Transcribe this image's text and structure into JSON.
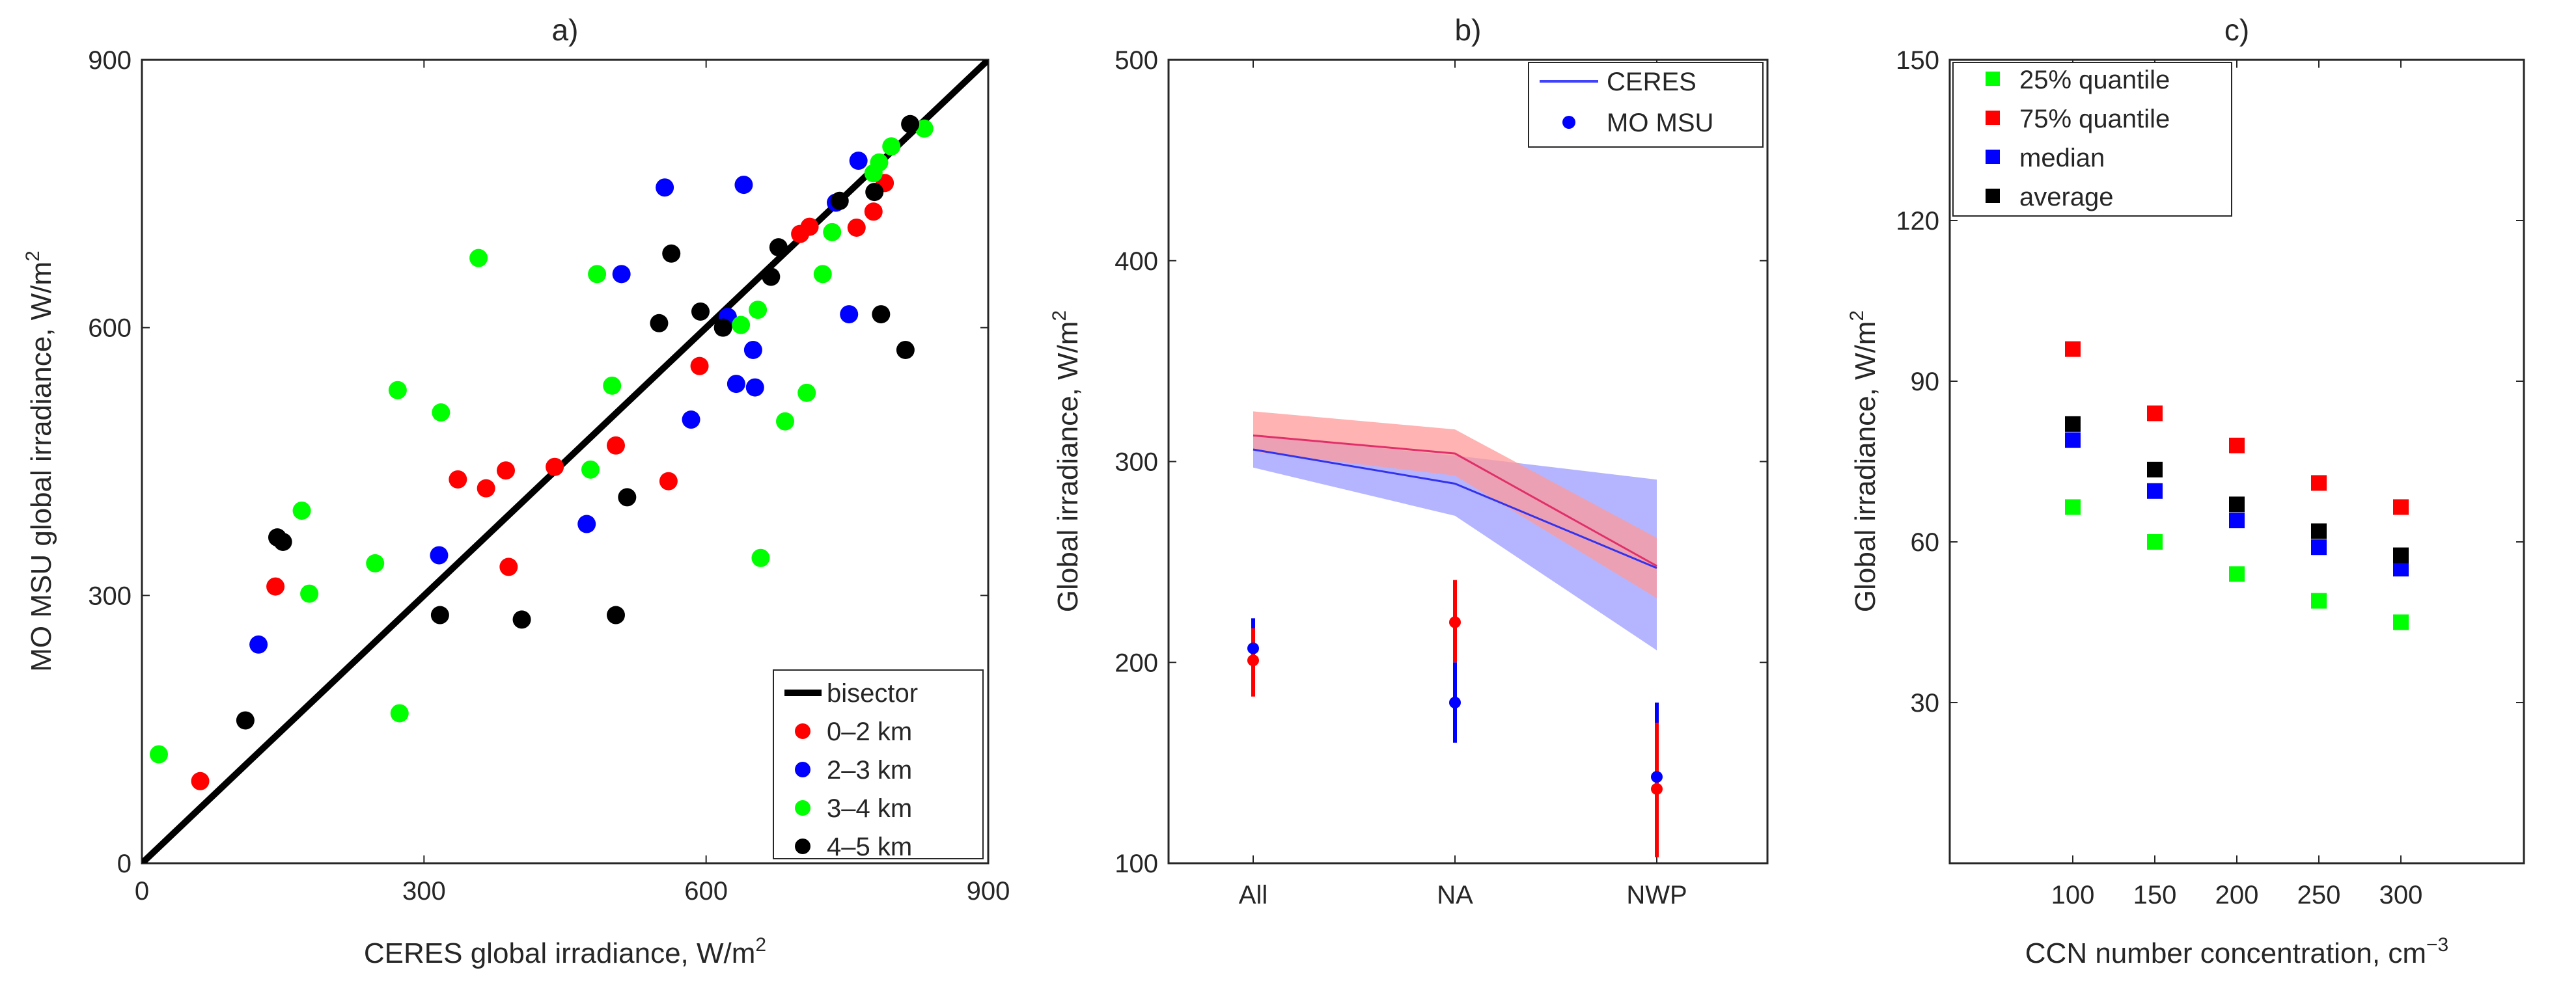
{
  "chart_data": [
    {
      "type": "scatter",
      "panel": "a)",
      "title": "a)",
      "xlabel": "CERES global irradiance, W/m",
      "xlabel_sup": "2",
      "ylabel": "MO MSU global irradiance, W/m",
      "ylabel_sup": "2",
      "xlim": [
        0,
        900
      ],
      "ylim": [
        0,
        900
      ],
      "xticks": [
        0,
        300,
        600,
        900
      ],
      "yticks": [
        0,
        300,
        600,
        900
      ],
      "legend_position": "bottom-right",
      "reference_line": {
        "name": "bisector",
        "from": [
          0,
          0
        ],
        "to": [
          900,
          900
        ],
        "color": "#000000"
      },
      "series": [
        {
          "name": "0–2 km",
          "color": "#ff0000",
          "points": [
            [
              62,
              92
            ],
            [
              142,
              310
            ],
            [
              336,
              430
            ],
            [
              366,
              420
            ],
            [
              387,
              440
            ],
            [
              390,
              332
            ],
            [
              439,
              444
            ],
            [
              504,
              468
            ],
            [
              560,
              428
            ],
            [
              593,
              557
            ],
            [
              700,
              705
            ],
            [
              710,
              713
            ],
            [
              760,
              712
            ],
            [
              778,
              730
            ],
            [
              790,
              762
            ]
          ]
        },
        {
          "name": "2–3 km",
          "color": "#0000ff",
          "points": [
            [
              124,
              245
            ],
            [
              316,
              345
            ],
            [
              473,
              380
            ],
            [
              510,
              660
            ],
            [
              556,
              757
            ],
            [
              584,
              497
            ],
            [
              623,
              612
            ],
            [
              632,
              537
            ],
            [
              640,
              760
            ],
            [
              650,
              575
            ],
            [
              652,
              533
            ],
            [
              738,
              740
            ],
            [
              752,
              615
            ],
            [
              762,
              787
            ]
          ]
        },
        {
          "name": "3–4 km",
          "color": "#00ff00",
          "points": [
            [
              18,
              122
            ],
            [
              170,
              395
            ],
            [
              178,
              302
            ],
            [
              248,
              336
            ],
            [
              272,
              530
            ],
            [
              274,
              168
            ],
            [
              318,
              505
            ],
            [
              358,
              678
            ],
            [
              477,
              441
            ],
            [
              484,
              660
            ],
            [
              500,
              535
            ],
            [
              637,
              603
            ],
            [
              655,
              620
            ],
            [
              658,
              342
            ],
            [
              684,
              495
            ],
            [
              707,
              527
            ],
            [
              724,
              660
            ],
            [
              734,
              707
            ],
            [
              778,
              773
            ],
            [
              784,
              785
            ],
            [
              797,
              803
            ],
            [
              832,
              823
            ]
          ]
        },
        {
          "name": "4–5 km",
          "color": "#000000",
          "points": [
            [
              110,
              160
            ],
            [
              144,
              365
            ],
            [
              150,
              360
            ],
            [
              317,
              278
            ],
            [
              404,
              273
            ],
            [
              504,
              278
            ],
            [
              516,
              410
            ],
            [
              550,
              605
            ],
            [
              563,
              683
            ],
            [
              594,
              618
            ],
            [
              618,
              600
            ],
            [
              669,
              657
            ],
            [
              677,
              690
            ],
            [
              742,
              742
            ],
            [
              779,
              752
            ],
            [
              786,
              615
            ],
            [
              812,
              575
            ],
            [
              817,
              828
            ]
          ]
        }
      ]
    },
    {
      "type": "line",
      "panel": "b)",
      "title": "b)",
      "xlabel": "",
      "ylabel": "Global irradiance, W/m",
      "ylabel_sup": "2",
      "categories": [
        "All",
        "NA",
        "NWP"
      ],
      "ylim": [
        100,
        500
      ],
      "yticks": [
        100,
        200,
        300,
        400,
        500
      ],
      "legend_position": "top-right",
      "series": [
        {
          "name": "CERES",
          "style": "line",
          "color": "#4040ff",
          "values": [
            306,
            289,
            247
          ],
          "band_low": [
            297,
            273,
            206
          ],
          "band_high": [
            313,
            303,
            291
          ]
        },
        {
          "name": "MO MSU",
          "style": "marker",
          "color": "#0000ff",
          "values": [
            313,
            304,
            248
          ],
          "band_low": [
            305,
            293,
            232
          ],
          "band_high": [
            325,
            316,
            262
          ]
        }
      ],
      "error_points": [
        {
          "category": "All",
          "color": "#0000ff",
          "value": 207,
          "low": 195,
          "high": 222
        },
        {
          "category": "All",
          "color": "#ff0000",
          "value": 201,
          "low": 183,
          "high": 217
        },
        {
          "category": "NA",
          "color": "#0000ff",
          "value": 180,
          "low": 160,
          "high": 200
        },
        {
          "category": "NA",
          "color": "#ff0000",
          "value": 220,
          "low": 200,
          "high": 241
        },
        {
          "category": "NWP",
          "color": "#0000ff",
          "value": 143,
          "low": 105,
          "high": 180
        },
        {
          "category": "NWP",
          "color": "#ff0000",
          "value": 137,
          "low": 103,
          "high": 170
        }
      ],
      "band_colors": {
        "CERES": "#9c9cff",
        "MO MSU": "#ff9a9a"
      }
    },
    {
      "type": "scatter",
      "panel": "c)",
      "title": "c)",
      "xlabel": "CCN number concentration, cm",
      "xlabel_sup": "−3",
      "ylabel": "Global irradiance, W/m",
      "ylabel_sup": "2",
      "x": [
        100,
        150,
        200,
        250,
        300
      ],
      "xlim": [
        25,
        375
      ],
      "ylim": [
        0,
        150
      ],
      "yticks": [
        30,
        60,
        90,
        120,
        150
      ],
      "xticks": [
        100,
        150,
        200,
        250,
        300
      ],
      "legend_position": "top-left",
      "series": [
        {
          "name": "25% quantile",
          "color": "#00ff00",
          "values": [
            66.5,
            60,
            54,
            49,
            45
          ]
        },
        {
          "name": "75% quantile",
          "color": "#ff0000",
          "values": [
            96,
            84,
            78,
            71,
            66.5
          ]
        },
        {
          "name": "median",
          "color": "#0000ff",
          "values": [
            79,
            69.5,
            64,
            59,
            55
          ]
        },
        {
          "name": "average",
          "color": "#000000",
          "values": [
            82,
            73.5,
            67,
            62,
            57.5
          ]
        }
      ]
    }
  ]
}
